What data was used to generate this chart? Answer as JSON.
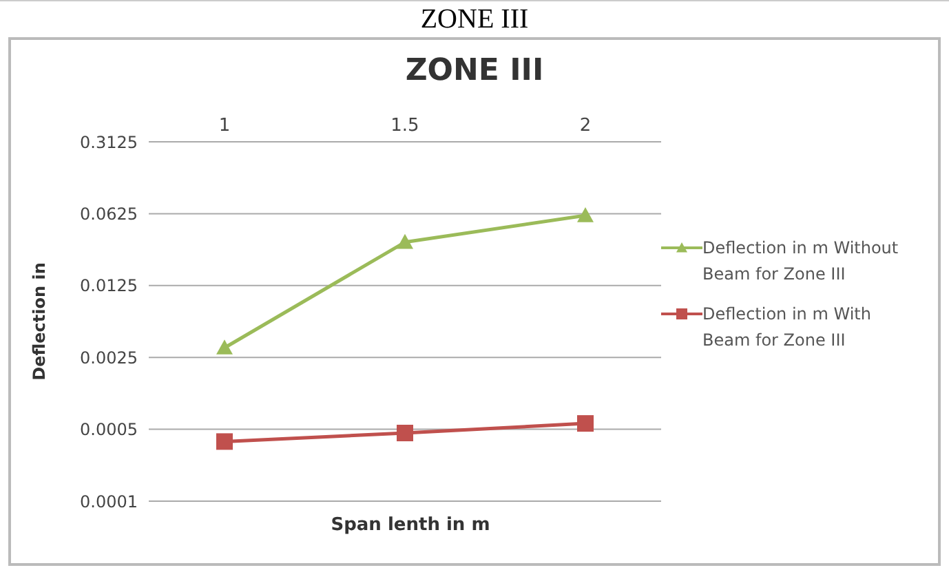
{
  "chart_data": {
    "type": "line",
    "title": "ZONE III",
    "subtitle": "ZONE III",
    "xlabel": "Span lenth in m",
    "ylabel": "Deflection in",
    "categories": [
      "1",
      "1.5",
      "2"
    ],
    "series": [
      {
        "name": "Deflection in m Without Beam for Zone III",
        "color": "#9bbb59",
        "marker": "triangle",
        "values": [
          0.0031,
          0.033,
          0.06
        ]
      },
      {
        "name": "Deflection in m With Beam for Zone III",
        "color": "#c0504d",
        "marker": "square",
        "values": [
          0.00038,
          0.00046,
          0.00057
        ]
      }
    ],
    "log": "y",
    "ylim": [
      0.0001,
      0.3125
    ],
    "yticks": [
      0.0001,
      0.0005,
      0.0025,
      0.0125,
      0.0625,
      0.3125
    ],
    "grid": "y",
    "legend": "right"
  }
}
